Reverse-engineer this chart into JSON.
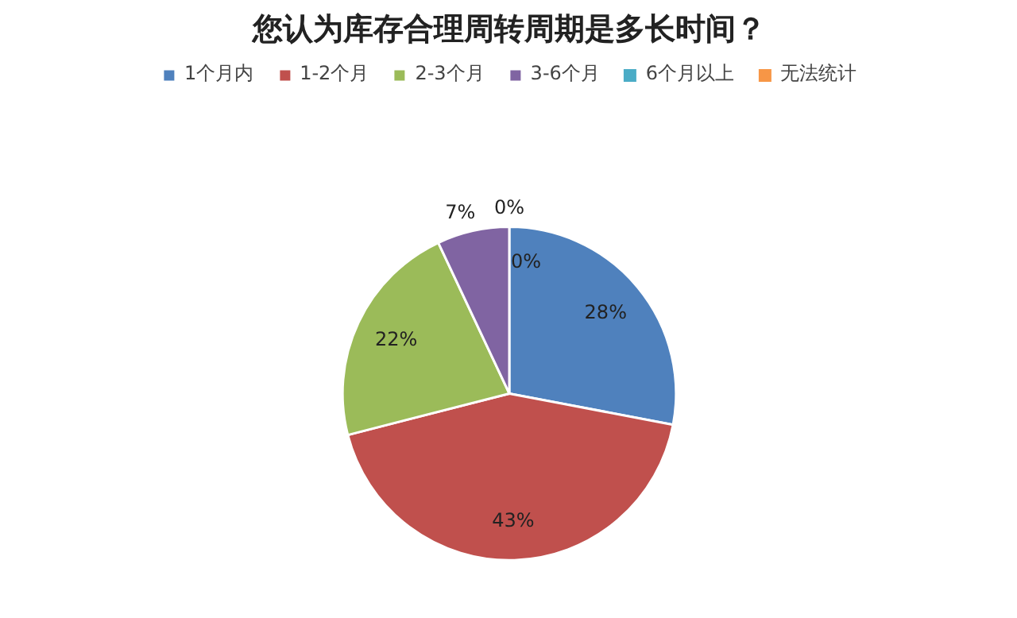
{
  "chart_data": {
    "type": "pie",
    "title": "您认为库存合理周转周期是多长时间？",
    "categories": [
      "1个月内",
      "1-2个月",
      "2-3个月",
      "3-6个月",
      "6个月以上",
      "无法统计"
    ],
    "values": [
      28,
      43,
      22,
      7,
      0,
      0
    ],
    "value_labels": [
      "28%",
      "43%",
      "22%",
      "7%",
      "0%",
      "0%"
    ],
    "colors": [
      "#4f81bd",
      "#c0504d",
      "#9bbb59",
      "#8064a2",
      "#4bacc6",
      "#f79646"
    ],
    "legend": "top"
  }
}
